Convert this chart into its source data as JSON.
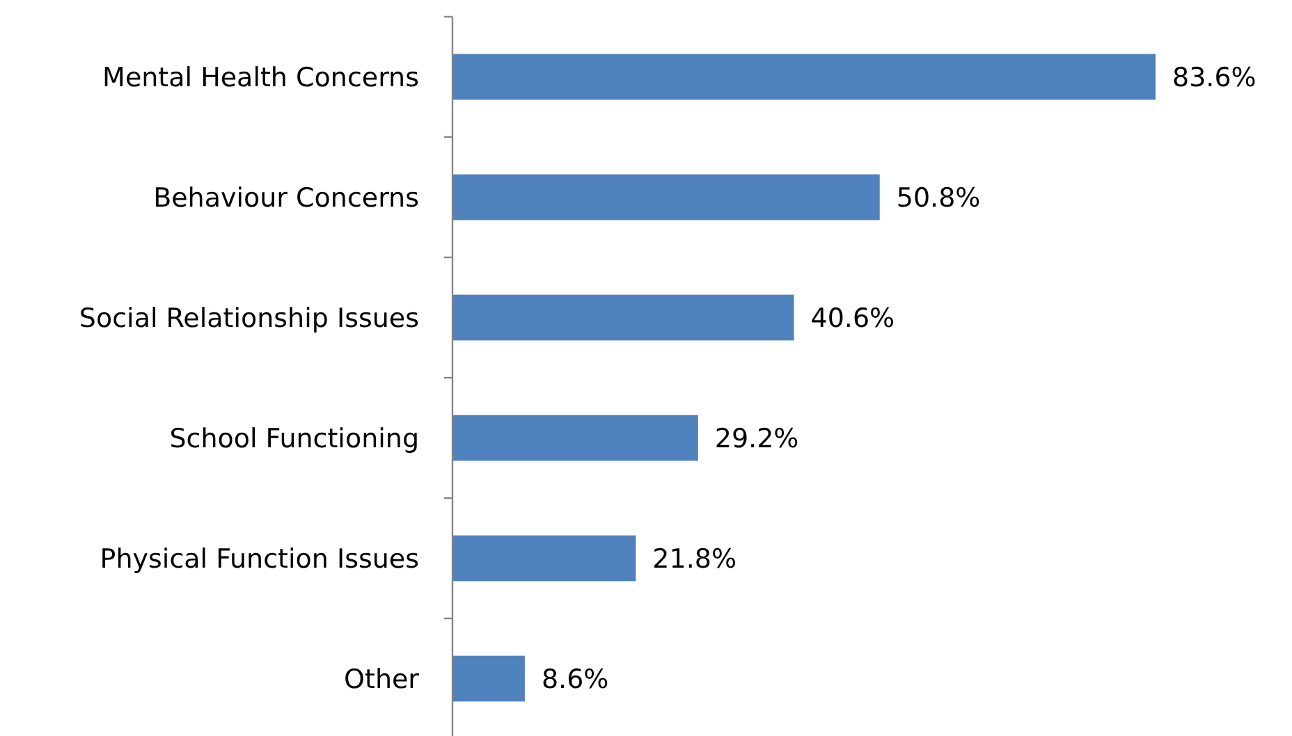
{
  "chart_data": {
    "type": "bar",
    "orientation": "horizontal",
    "categories": [
      "Mental Health Concerns",
      "Behaviour Concerns",
      "Social Relationship Issues",
      "School Functioning",
      "Physical Function Issues",
      "Other"
    ],
    "values": [
      83.6,
      50.8,
      40.6,
      29.2,
      21.8,
      8.6
    ],
    "value_labels": [
      "83.6%",
      "50.8%",
      "40.6%",
      "29.2%",
      "21.8%",
      "8.6%"
    ],
    "color": "#4f81bd"
  }
}
